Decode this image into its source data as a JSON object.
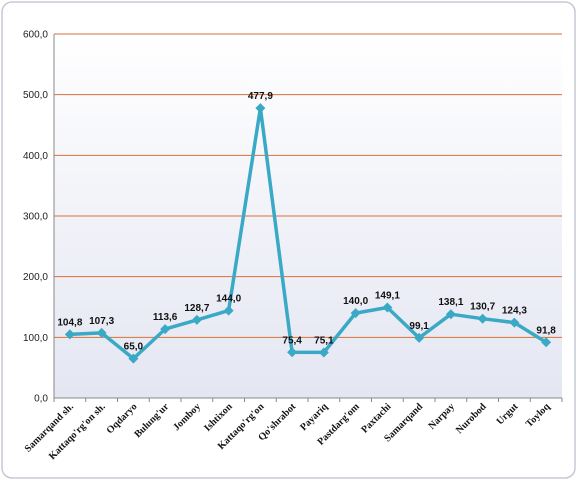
{
  "chart_data": {
    "type": "line",
    "title": "",
    "xlabel": "",
    "ylabel": "",
    "ylim": [
      0,
      600
    ],
    "ytick_labels": [
      "0,0",
      "100,0",
      "200,0",
      "300,0",
      "400,0",
      "500,0",
      "600,0"
    ],
    "yticks": [
      0,
      100,
      200,
      300,
      400,
      500,
      600
    ],
    "grid": "horizontal",
    "legend": "none",
    "categories": [
      "Samarqand sh.",
      "Kattaqo'rg'on sh.",
      "Oqdaryo",
      "Bulung'ur",
      "Jomboy",
      "Ishtixon",
      "Kattaqo'rg'on",
      "Qo'shrabot",
      "Payariq",
      "Pastdarg'om",
      "Paxtachi",
      "Samarqand",
      "Narpay",
      "Nurobod",
      "Urgut",
      "Toyloq"
    ],
    "series": [
      {
        "values": [
          104.8,
          107.3,
          65.0,
          113.6,
          128.7,
          144.0,
          477.9,
          75.4,
          75.1,
          140.0,
          149.1,
          99.1,
          138.1,
          130.7,
          124.3,
          91.8
        ],
        "labels": [
          "104,8",
          "107,3",
          "65,0",
          "113,6",
          "128,7",
          "144,0",
          "477,9",
          "75,4",
          "75,1",
          "140,0",
          "149,1",
          "99,1",
          "138,1",
          "130,7",
          "124,3",
          "91,8"
        ]
      }
    ],
    "colors": {
      "line": "#3aa9c6",
      "gridline": "#d9703a",
      "plot_bg_top": "#ffffff",
      "plot_bg_bottom": "#e4e6f2",
      "frame_border": "#c5c8d6"
    }
  }
}
